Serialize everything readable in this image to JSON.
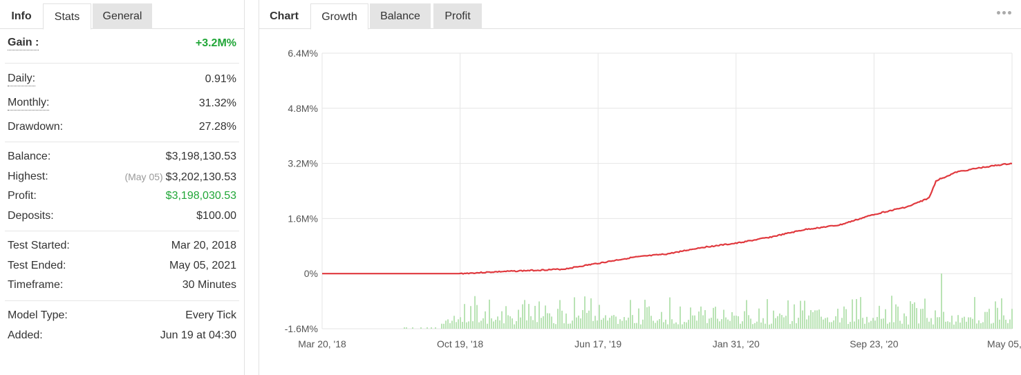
{
  "left_tabs": [
    {
      "label": "Info"
    },
    {
      "label": "Stats"
    },
    {
      "label": "General"
    }
  ],
  "stats": {
    "gain": {
      "label": "Gain :",
      "value": "+3.2M%"
    },
    "daily": {
      "label": "Daily:",
      "value": "0.91%"
    },
    "monthly": {
      "label": "Monthly:",
      "value": "31.32%"
    },
    "drawdown": {
      "label": "Drawdown:",
      "value": "27.28%"
    },
    "balance": {
      "label": "Balance:",
      "value": "$3,198,130.53"
    },
    "highest": {
      "label": "Highest:",
      "note": "(May 05)",
      "value": "$3,202,130.53"
    },
    "profit": {
      "label": "Profit:",
      "value": "$3,198,030.53"
    },
    "deposits": {
      "label": "Deposits:",
      "value": "$100.00"
    },
    "test_started": {
      "label": "Test Started:",
      "value": "Mar 20, 2018"
    },
    "test_ended": {
      "label": "Test Ended:",
      "value": "May 05, 2021"
    },
    "timeframe": {
      "label": "Timeframe:",
      "value": "30 Minutes"
    },
    "model_type": {
      "label": "Model Type:",
      "value": "Every Tick"
    },
    "added": {
      "label": "Added:",
      "value": "Jun 19 at 04:30"
    }
  },
  "right_tabs": [
    {
      "label": "Chart"
    },
    {
      "label": "Growth"
    },
    {
      "label": "Balance"
    },
    {
      "label": "Profit"
    }
  ],
  "colors": {
    "growth_line": "#e0393e",
    "volume_bars": "#b9e3b4",
    "positive": "#20a637",
    "grid": "#e6e6e6"
  },
  "chart_data": {
    "type": "line",
    "title": "",
    "xlabel": "",
    "ylabel": "",
    "x_ticks": [
      "Mar 20, '18",
      "Oct 19, '18",
      "Jun 17, '19",
      "Jan 31, '20",
      "Sep 23, '20",
      "May 05, '21"
    ],
    "y_ticks": [
      "6.4M%",
      "4.8M%",
      "3.2M%",
      "1.6M%",
      "0%",
      "-1.6M%"
    ],
    "ylim": [
      -1.6,
      6.4
    ],
    "y_unit": "M%",
    "grid": true,
    "legend": "none",
    "series": [
      {
        "x": [
          "Mar 20, '18",
          "Oct 19, '18",
          "Jun 17, '19",
          "Jan 31, '20",
          "Sep 23, '20",
          "May 05, '21"
        ],
        "values": [
          0,
          0,
          0.3,
          0.88,
          1.72,
          3.2
        ],
        "color": "#e0393e",
        "profile": [
          [
            0,
            0
          ],
          [
            0.2,
            0.0
          ],
          [
            0.25,
            0.05
          ],
          [
            0.3,
            0.09
          ],
          [
            0.35,
            0.13
          ],
          [
            0.4,
            0.3
          ],
          [
            0.45,
            0.47
          ],
          [
            0.5,
            0.57
          ],
          [
            0.55,
            0.76
          ],
          [
            0.6,
            0.88
          ],
          [
            0.65,
            1.06
          ],
          [
            0.7,
            1.28
          ],
          [
            0.75,
            1.41
          ],
          [
            0.8,
            1.72
          ],
          [
            0.85,
            1.95
          ],
          [
            0.88,
            2.2
          ],
          [
            0.89,
            2.7
          ],
          [
            0.92,
            2.95
          ],
          [
            0.95,
            3.06
          ],
          [
            0.98,
            3.15
          ],
          [
            1.0,
            3.2
          ]
        ]
      }
    ],
    "volume": {
      "color": "#b9e3b4",
      "start_fraction": 0.17,
      "active_fraction": 0.2,
      "spike_fraction": 0.897
    }
  }
}
